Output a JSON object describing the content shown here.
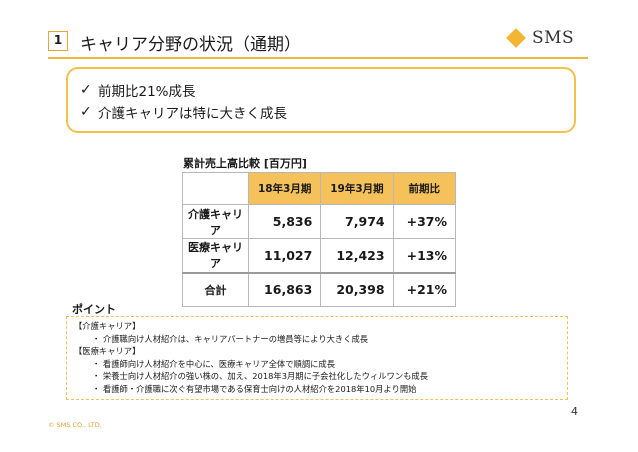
{
  "header": {
    "slide_number": "1",
    "title": "キャリア分野の状況（通期）",
    "logo_text": "SMS"
  },
  "highlights": [
    "前期比21%成長",
    "介護キャリアは特に大きく成長"
  ],
  "table": {
    "caption": "累計売上高比較 [百万円]",
    "columns": [
      "18年3月期",
      "19年3月期",
      "前期比"
    ],
    "rows": [
      {
        "label": "介護キャリア",
        "fy18": "5,836",
        "fy19": "7,974",
        "yoy": "+37%"
      },
      {
        "label": "医療キャリア",
        "fy18": "11,027",
        "fy19": "12,423",
        "yoy": "+13%"
      },
      {
        "label": "合計",
        "fy18": "16,863",
        "fy19": "20,398",
        "yoy": "+21%"
      }
    ]
  },
  "points": {
    "label": "ポイント",
    "sections": [
      {
        "heading": "【介護キャリア】",
        "items": [
          "・ 介護職向け人材紹介は、キャリアパートナーの増員等により大きく成長"
        ]
      },
      {
        "heading": "【医療キャリア】",
        "items": [
          "・ 看護師向け人材紹介を中心に、医療キャリア全体で順調に成長",
          "・ 栄養士向け人材紹介の強い株の、加え、2018年3月期に子会社化したウィルワンも成長",
          "・ 看護師・介護職に次ぐ有望市場である保育士向けの人材紹介を2018年10月より開始"
        ]
      }
    ]
  },
  "footer": {
    "copyright": "© SMS CO., LTD.",
    "page_number": "4"
  },
  "colors": {
    "accent": "#f2b632",
    "table_highlight": "#f4c15a",
    "copyright": "#e0a030"
  },
  "icons": [
    "check-icon",
    "logo-diamond-icon"
  ]
}
